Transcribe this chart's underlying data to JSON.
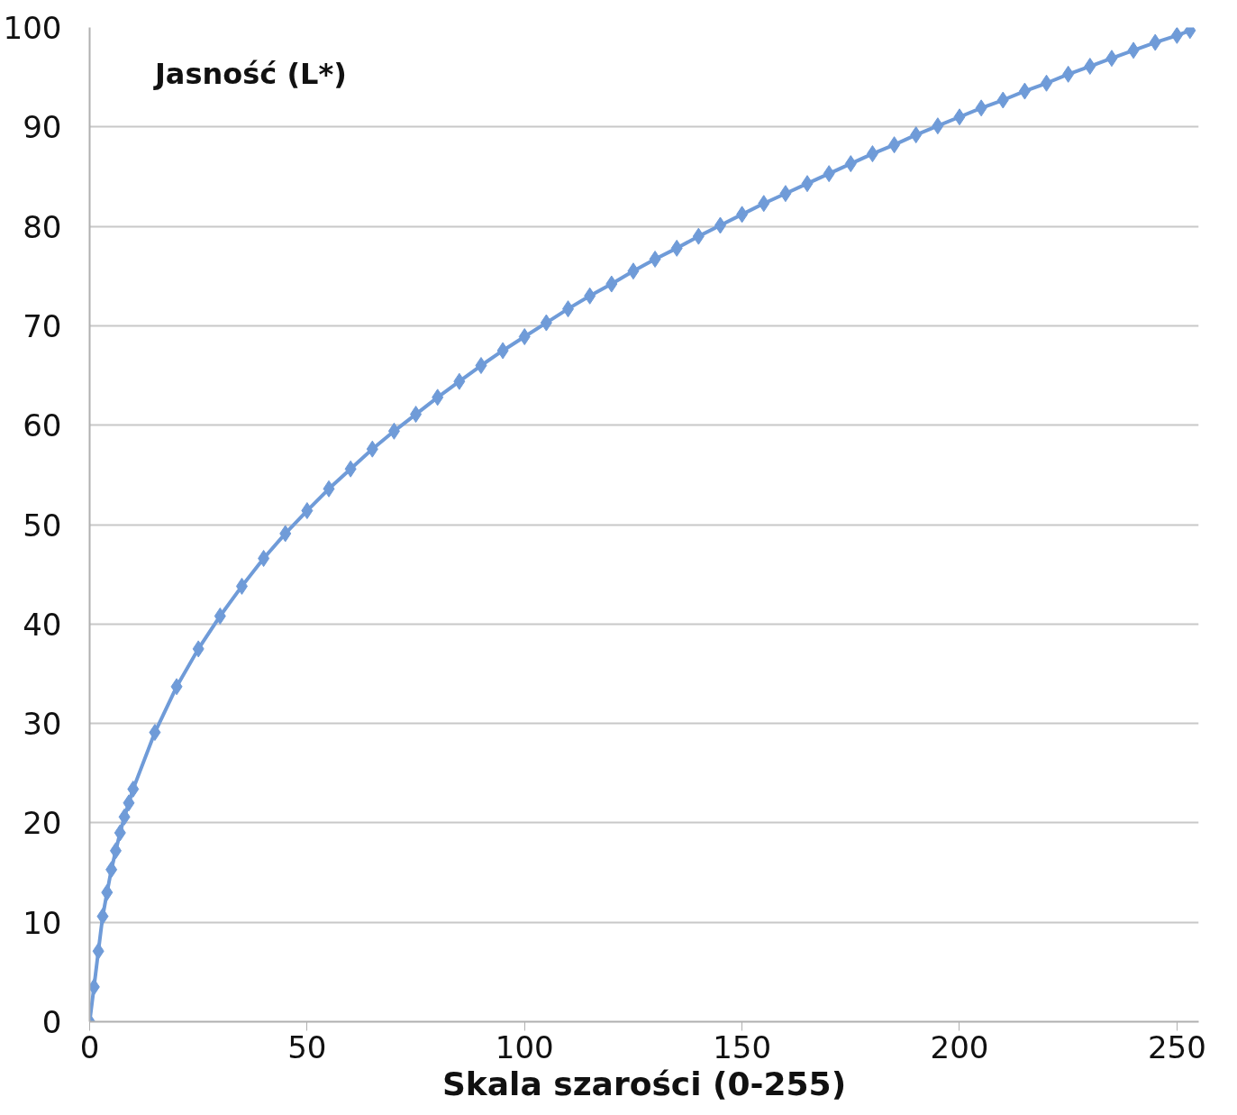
{
  "chart_data": {
    "type": "line",
    "xlabel": "Skala szarości (0-255)",
    "ylabel": "Jasność (L*)",
    "x": [
      0,
      1,
      2,
      3,
      4,
      5,
      6,
      7,
      8,
      9,
      10,
      15,
      20,
      25,
      30,
      35,
      40,
      45,
      50,
      55,
      60,
      65,
      70,
      75,
      80,
      85,
      90,
      95,
      100,
      105,
      110,
      115,
      120,
      125,
      130,
      135,
      140,
      145,
      150,
      155,
      160,
      165,
      170,
      175,
      180,
      185,
      190,
      195,
      200,
      205,
      210,
      215,
      220,
      225,
      230,
      235,
      240,
      245,
      250,
      253
    ],
    "series": [
      {
        "color": "#6f9bd8",
        "values": [
          0,
          3.5,
          7.1,
          10.6,
          13.0,
          15.3,
          17.2,
          19.0,
          20.6,
          22.0,
          23.4,
          29.1,
          33.7,
          37.5,
          40.8,
          43.8,
          46.6,
          49.1,
          51.4,
          53.6,
          55.6,
          57.6,
          59.4,
          61.1,
          62.8,
          64.4,
          66.0,
          67.5,
          68.9,
          70.3,
          71.7,
          73.0,
          74.2,
          75.5,
          76.7,
          77.8,
          79.0,
          80.1,
          81.2,
          82.3,
          83.3,
          84.3,
          85.3,
          86.3,
          87.3,
          88.2,
          89.2,
          90.1,
          91.0,
          91.9,
          92.7,
          93.6,
          94.4,
          95.3,
          96.1,
          96.9,
          97.7,
          98.5,
          99.2,
          99.7
        ]
      }
    ],
    "xlim": [
      0,
      255
    ],
    "ylim": [
      0,
      100
    ],
    "xticks": [
      0,
      50,
      100,
      150,
      200,
      250
    ],
    "yticks": [
      0,
      10,
      20,
      30,
      40,
      50,
      60,
      70,
      80,
      90,
      100
    ],
    "grid": "y",
    "marker": "diamond",
    "line_style": "solid"
  }
}
